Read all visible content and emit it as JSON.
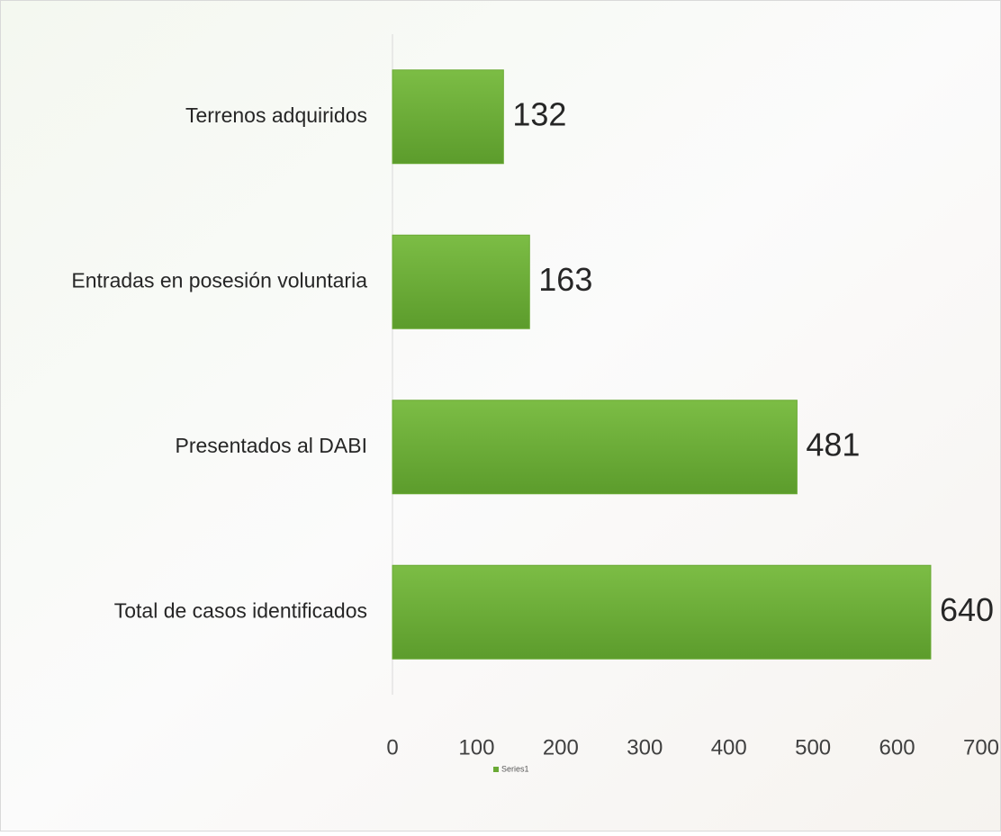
{
  "chart_data": {
    "type": "bar",
    "orientation": "horizontal",
    "categories": [
      "Terrenos adquiridos",
      "Entradas en posesión voluntaria",
      "Presentados al DABI",
      "Total de casos identificados"
    ],
    "series": [
      {
        "name": "Series1",
        "color": "#6aaa35",
        "values": [
          132,
          163,
          481,
          640
        ]
      }
    ],
    "xlim": [
      0,
      700
    ],
    "xticks": [
      0,
      100,
      200,
      300,
      400,
      500,
      600,
      700
    ],
    "grid": false,
    "data_labels": true,
    "legend": "bottom"
  }
}
